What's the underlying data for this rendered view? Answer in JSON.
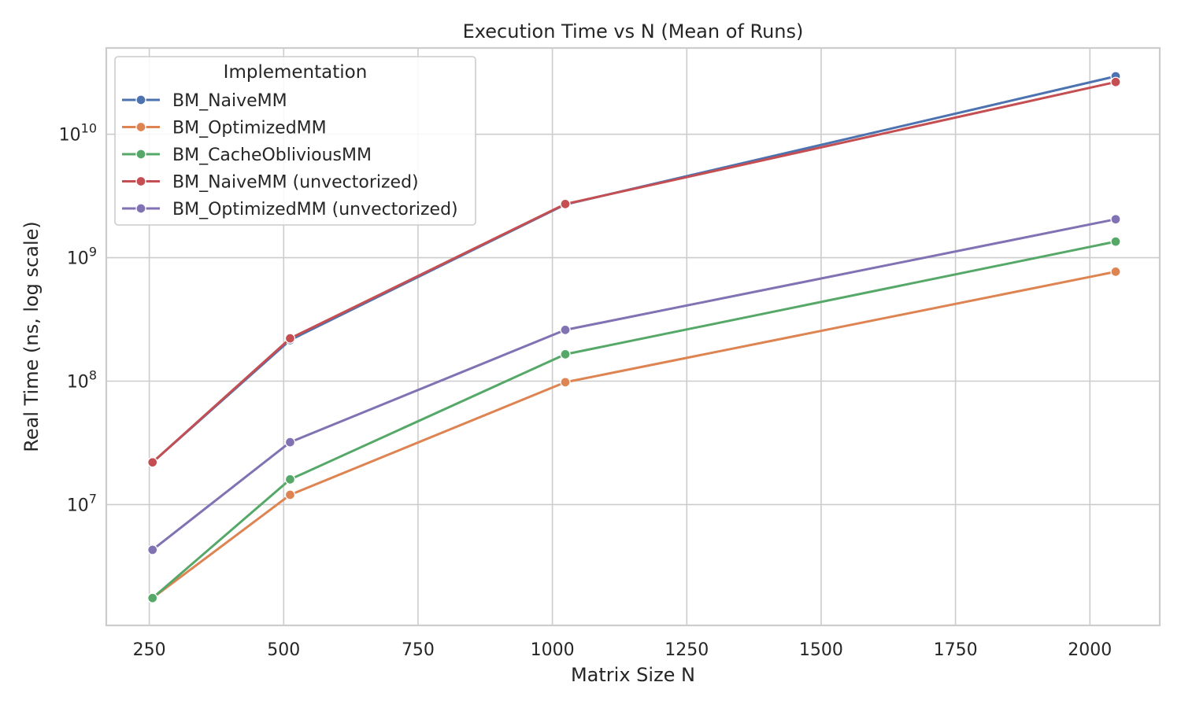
{
  "chart_data": {
    "type": "line",
    "title": "Execution Time vs N (Mean of Runs)",
    "xlabel": "Matrix Size N",
    "ylabel": "Real Time (ns, log scale)",
    "x": [
      256,
      512,
      1024,
      2048
    ],
    "xlim": [
      170,
      2130
    ],
    "ylim": [
      1050000.0,
      50000000000.0
    ],
    "yscale": "log",
    "xticks": [
      250,
      500,
      750,
      1000,
      1250,
      1500,
      1750,
      2000
    ],
    "xtick_labels": [
      "250",
      "500",
      "750",
      "1000",
      "1250",
      "1500",
      "1750",
      "2000"
    ],
    "yticks": [
      {
        "value": 10000000.0,
        "base": "10",
        "exp": "7"
      },
      {
        "value": 100000000.0,
        "base": "10",
        "exp": "8"
      },
      {
        "value": 1000000000.0,
        "base": "10",
        "exp": "9"
      },
      {
        "value": 10000000000.0,
        "base": "10",
        "exp": "10"
      }
    ],
    "grid": true,
    "legend": {
      "title": "Implementation",
      "placement": "top-left"
    },
    "series": [
      {
        "name": "BM_NaiveMM",
        "color": "#4c72b0",
        "values": [
          22000000.0,
          215000000.0,
          2700000000.0,
          29500000000.0
        ]
      },
      {
        "name": "BM_OptimizedMM",
        "color": "#dd8452",
        "values": [
          1750000.0,
          12000000.0,
          98000000.0,
          770000000.0
        ]
      },
      {
        "name": "BM_CacheObliviousMM",
        "color": "#55a868",
        "values": [
          1750000.0,
          16000000.0,
          165000000.0,
          1350000000.0
        ]
      },
      {
        "name": "BM_NaiveMM (unvectorized)",
        "color": "#c44e52",
        "values": [
          22000000.0,
          222000000.0,
          2720000000.0,
          26500000000.0
        ]
      },
      {
        "name": "BM_OptimizedMM (unvectorized)",
        "color": "#8172b3",
        "values": [
          4300000.0,
          32000000.0,
          260000000.0,
          2050000000.0
        ]
      }
    ]
  }
}
